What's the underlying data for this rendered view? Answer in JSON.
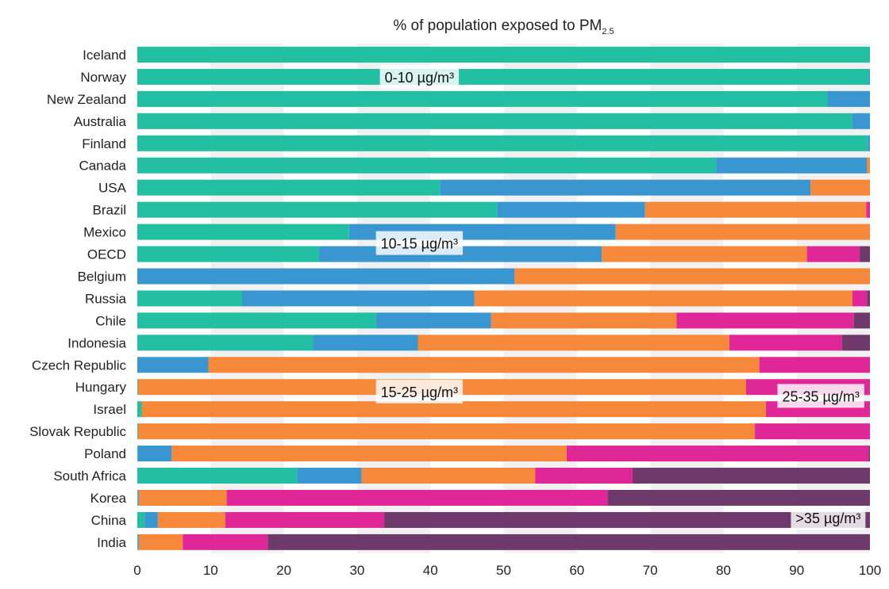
{
  "chart_data": {
    "type": "bar",
    "orientation": "horizontal",
    "stacked": true,
    "title": "% of population exposed to PM",
    "title_subscript": "2.5",
    "xlim": [
      0,
      100
    ],
    "xticks": [
      "0",
      "10",
      "20",
      "30",
      "40",
      "50",
      "60",
      "70",
      "80",
      "90",
      "100"
    ],
    "grid": "vertical bands",
    "categories": [
      "Iceland",
      "Norway",
      "New Zealand",
      "Australia",
      "Finland",
      "Canada",
      "USA",
      "Brazil",
      "Mexico",
      "OECD",
      "Belgium",
      "Russia",
      "Chile",
      "Indonesia",
      "Czech Republic",
      "Hungary",
      "Israel",
      "Slovak Republic",
      "Poland",
      "South Africa",
      "Korea",
      "China",
      "India"
    ],
    "series": [
      {
        "color": "#22bfa3",
        "values": [
          100,
          99.8,
          94.2,
          97.6,
          99.7,
          79,
          41.3,
          49.1,
          28.9,
          24.8,
          0,
          14.3,
          32.6,
          24,
          0,
          0.1,
          0.6,
          0.1,
          0.1,
          21.8,
          0.1,
          1,
          0.1
        ]
      },
      {
        "color": "#3a96d0",
        "values": [
          0,
          0.2,
          5.8,
          2.4,
          0.3,
          20.6,
          50.6,
          20.2,
          36.4,
          38.6,
          51.5,
          31.7,
          15.7,
          14.3,
          9.7,
          0,
          0,
          0,
          4.6,
          8.8,
          0.1,
          1.8,
          0.1
        ]
      },
      {
        "color": "#f5883a",
        "values": [
          0,
          0,
          0,
          0,
          0,
          0.4,
          8.1,
          30.2,
          34.7,
          28,
          48.5,
          51.6,
          25.3,
          42.5,
          75.2,
          83,
          85.2,
          84.2,
          53.9,
          23.7,
          12,
          9.2,
          6
        ]
      },
      {
        "color": "#e02797",
        "values": [
          0,
          0,
          0,
          0,
          0,
          0,
          0,
          0.5,
          0,
          7.2,
          0,
          2,
          24.2,
          15.4,
          15.1,
          16.9,
          14.2,
          15.7,
          41.2,
          13.3,
          52,
          21.7,
          11.6
        ]
      },
      {
        "color": "#6e3a6b",
        "values": [
          0,
          0,
          0,
          0,
          0,
          0,
          0,
          0,
          0,
          1.4,
          0,
          0.4,
          2.2,
          3.8,
          0,
          0,
          0,
          0,
          0.2,
          32.4,
          35.8,
          66.3,
          82.2
        ]
      }
    ],
    "annotations": [
      {
        "text": "0-10 µg/m³",
        "x": 38.5,
        "row": 1
      },
      {
        "text": "10-15 µg/m³",
        "x": 38.5,
        "row": 8.5
      },
      {
        "text": "15-25 µg/m³",
        "x": 38.5,
        "row": 15.2
      },
      {
        "text": "25-35 µg/m³",
        "x": 93.3,
        "row": 15.4
      },
      {
        "text": ">35 µg/m³",
        "x": 94.3,
        "row": 20.9
      }
    ]
  }
}
